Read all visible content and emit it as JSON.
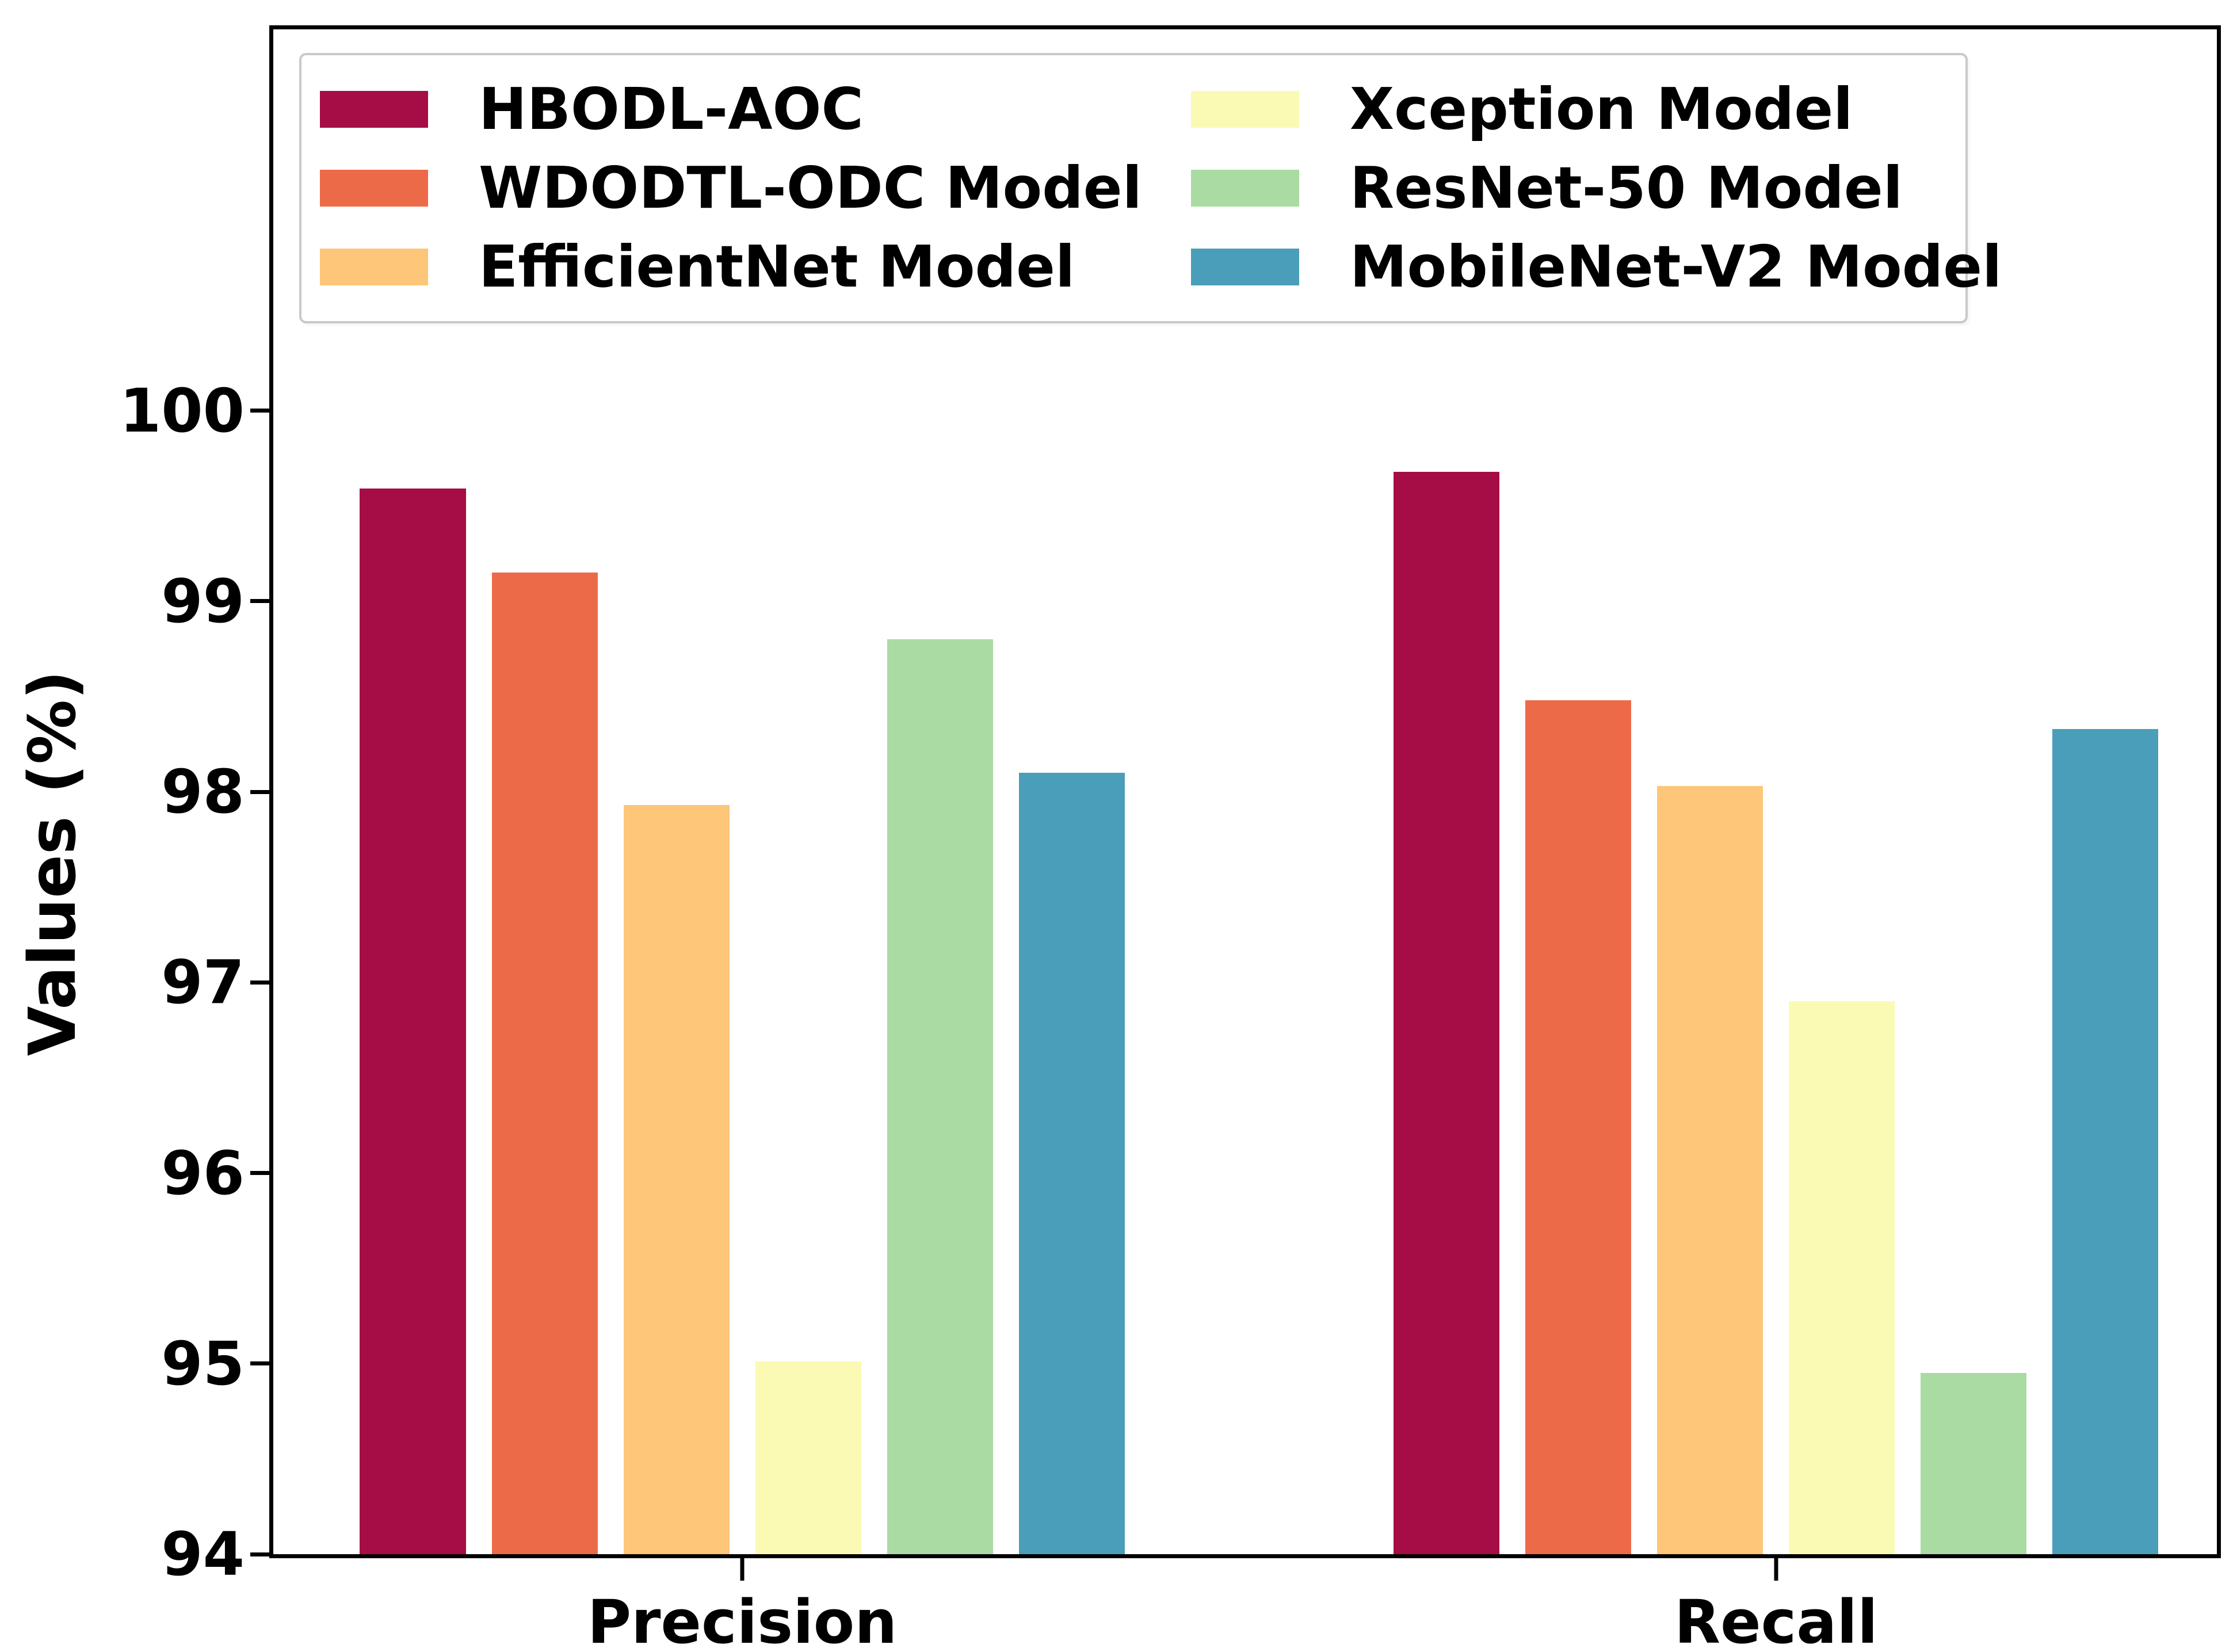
{
  "chart_data": {
    "type": "bar",
    "title": "",
    "xlabel": "",
    "ylabel": "Values (%)",
    "categories": [
      "Precision",
      "Recall"
    ],
    "series": [
      {
        "name": "HBODL-AOC",
        "color": "#A60C45",
        "values": [
          99.59,
          99.68
        ]
      },
      {
        "name": "WDODTL-ODC Model",
        "color": "#ED6A48",
        "values": [
          99.15,
          98.48
        ]
      },
      {
        "name": "EfficientNet Model",
        "color": "#FDC678",
        "values": [
          97.93,
          98.03
        ]
      },
      {
        "name": "Xception Model",
        "color": "#FAFAB4",
        "values": [
          95.01,
          96.9
        ]
      },
      {
        "name": "ResNet-50 Model",
        "color": "#A9DBA2",
        "values": [
          98.8,
          94.95
        ]
      },
      {
        "name": "MobileNet-V2 Model",
        "color": "#4A9EB9",
        "values": [
          98.1,
          98.33
        ]
      }
    ],
    "yticks": [
      94,
      95,
      96,
      97,
      98,
      99,
      100
    ],
    "ylim": [
      94,
      102
    ],
    "grid": false,
    "legend_position": "upper-left-inside, 2 columns, 3 rows",
    "axis_color": "#000000",
    "background_color": "#ffffff"
  }
}
